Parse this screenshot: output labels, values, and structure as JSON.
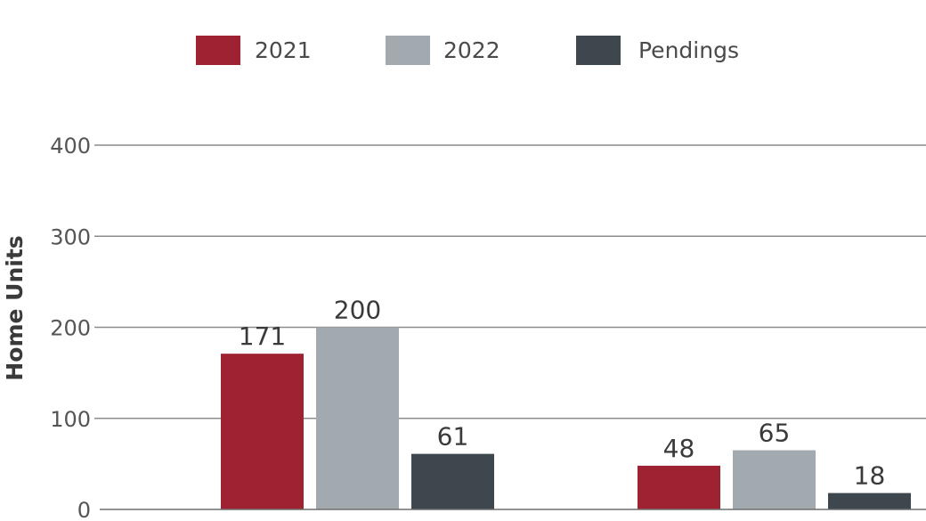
{
  "chart_data": {
    "type": "bar",
    "categories": [
      "",
      ""
    ],
    "series": [
      {
        "name": "2021",
        "values": [
          171,
          48
        ],
        "color": "#9e2231"
      },
      {
        "name": "2022",
        "values": [
          200,
          65
        ],
        "color": "#a2aaaf"
      },
      {
        "name": "Pendings",
        "values": [
          61,
          18
        ],
        "color": "#3f474e"
      }
    ],
    "data_labels": [
      [
        "171",
        "48"
      ],
      [
        "200",
        "65"
      ],
      [
        "61",
        "18"
      ]
    ],
    "ylabel": "Home Units",
    "ylim": [
      0,
      400
    ],
    "yticks": [
      0,
      100,
      200,
      300,
      400
    ],
    "ytick_labels": [
      "0",
      "100",
      "200",
      "300",
      "400"
    ],
    "grid": true,
    "legend": "top-center"
  }
}
